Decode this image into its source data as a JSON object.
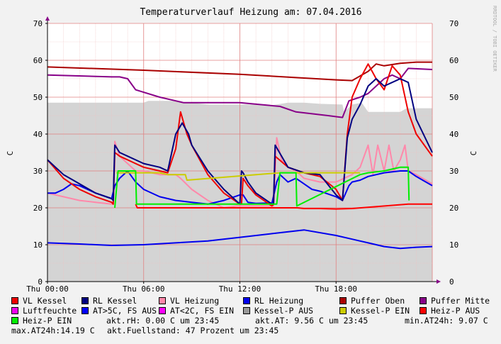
{
  "title": "Temperaturverlauf Heizung am: 07.04.2016",
  "side_credit": "RRDTOOL / TOBI OETIKER",
  "ylabel_left": "C",
  "ylabel_right": "C",
  "legend": [
    {
      "label": "VL Kessel",
      "color": "#ee0000"
    },
    {
      "label": "RL Kessel",
      "color": "#000080"
    },
    {
      "label": "VL Heizung",
      "color": "#ff88aa"
    },
    {
      "label": "RL Heizung",
      "color": "#0000ee"
    },
    {
      "label": "Puffer Oben",
      "color": "#aa0000"
    },
    {
      "label": "Puffer Mitte",
      "color": "#880088"
    },
    {
      "label": "Luftfeuchte",
      "color": "#ee00ee"
    },
    {
      "label": "AT>5C, FS AUS",
      "color": "#0000ff"
    },
    {
      "label": "AT<2C, FS EIN",
      "color": "#ff00ff"
    },
    {
      "label": "Kessel-P AUS",
      "color": "#999999"
    },
    {
      "label": "Kessel-P EIN",
      "color": "#cccc00"
    },
    {
      "label": "Heiz-P AUS",
      "color": "#ff0000"
    },
    {
      "label": "Heiz-P EIN",
      "color": "#00ee00"
    }
  ],
  "status": {
    "rh": "akt.rH: 0.00 C um 23:45",
    "at": "akt.AT: 9.56 C um 23:45",
    "min_at": "min.AT24h: 9.07 C",
    "max_at": "max.AT24h:14.19 C",
    "fuellstand": "akt.Fuellstand:   47 Prozent um 23:45"
  },
  "chart_data": {
    "type": "line",
    "title": "Temperaturverlauf Heizung am: 07.04.2016",
    "xlabel": "",
    "ylabel": "C",
    "x_unit": "hours since 00:00",
    "xlim": [
      0,
      24
    ],
    "ylim": [
      0,
      70
    ],
    "x_ticks": [
      {
        "x": 0,
        "label": "Thu 00:00"
      },
      {
        "x": 6,
        "label": "Thu 06:00"
      },
      {
        "x": 12,
        "label": "Thu 12:00"
      },
      {
        "x": 18,
        "label": "Thu 18:00"
      }
    ],
    "y_ticks": [
      0,
      10,
      20,
      30,
      40,
      50,
      60,
      70
    ],
    "grid": true,
    "series": [
      {
        "name": "Kessel-P AUS",
        "style": "area",
        "color": "#d4d4d4",
        "x": [
          0,
          4,
          5.5,
          6,
          6.3,
          7,
          7.4,
          8.1,
          8.3,
          9,
          10,
          11,
          12.5,
          13,
          14,
          15,
          16,
          17,
          18.4,
          18.5,
          19,
          19.6,
          20,
          21,
          22,
          22.4,
          22.5,
          23,
          24
        ],
        "y": [
          48.5,
          48.5,
          48.5,
          48.5,
          49,
          49,
          49,
          49,
          48.5,
          48.5,
          48,
          48,
          48,
          48,
          47.8,
          48.5,
          48.5,
          48.2,
          48,
          46,
          48,
          48.5,
          46,
          46,
          46,
          47,
          47,
          47,
          47
        ]
      },
      {
        "name": "Puffer Oben",
        "color": "#aa0000",
        "x": [
          0,
          6,
          12,
          18,
          19,
          20,
          20.5,
          21,
          22,
          23,
          24
        ],
        "y": [
          58.2,
          57.3,
          56.2,
          54.7,
          54.5,
          57,
          59,
          58.5,
          59.2,
          59.5,
          59.5
        ]
      },
      {
        "name": "Puffer Mitte",
        "color": "#880088",
        "x": [
          0,
          4,
          4.5,
          5,
          5.5,
          7,
          8,
          8.5,
          10,
          12,
          14.5,
          15.5,
          17.5,
          18.4,
          18.8,
          19.5,
          20,
          21,
          21.5,
          22,
          22.5,
          24
        ],
        "y": [
          56,
          55.5,
          55.5,
          55,
          52,
          50,
          49,
          48.5,
          48.5,
          48.5,
          47.5,
          46,
          45,
          44.5,
          49,
          50,
          51,
          55,
          56,
          55,
          57.8,
          57.5
        ]
      },
      {
        "name": "AT>5C, FS AUS",
        "color": "#0000ee",
        "x": [
          0,
          2,
          4,
          6,
          8,
          10,
          12,
          14,
          16,
          18,
          19,
          20,
          21,
          22,
          23,
          24
        ],
        "y": [
          10.5,
          10.2,
          9.8,
          10,
          10.5,
          11,
          12,
          13,
          14,
          12.5,
          11.5,
          10.5,
          9.5,
          9,
          9.3,
          9.5
        ]
      },
      {
        "name": "VL Heizung",
        "color": "#ff88aa",
        "x": [
          0,
          1,
          2,
          3,
          4,
          4.1,
          4.2,
          4.5,
          5,
          5.5,
          6,
          7,
          8,
          8.3,
          9,
          10,
          11,
          11.8,
          12,
          13,
          14,
          14.1,
          14.3,
          14.6,
          15,
          15.5,
          16,
          17,
          18,
          18.5,
          19,
          19.5,
          20,
          20.3,
          20.6,
          21,
          21.3,
          21.6,
          22,
          22.3,
          22.5,
          23,
          24
        ],
        "y": [
          24,
          23,
          22,
          21.5,
          21,
          21,
          38,
          34,
          32,
          30,
          30,
          29,
          29,
          28,
          25,
          22,
          20,
          20.5,
          20.5,
          20.5,
          20.5,
          20.5,
          39,
          33,
          31,
          30,
          28,
          27,
          27,
          28,
          29,
          31,
          37,
          29,
          37,
          30,
          37,
          30,
          33,
          37,
          30,
          29,
          26.5
        ]
      },
      {
        "name": "RL Heizung",
        "color": "#0000ee",
        "x": [
          0,
          0.5,
          1,
          1.5,
          2,
          3,
          4,
          4.2,
          4.5,
          5,
          5.5,
          6,
          7,
          8,
          9,
          10,
          11,
          12,
          12.2,
          12.5,
          13,
          14,
          14.3,
          14.5,
          15,
          15.5,
          16,
          16.5,
          17,
          18,
          18.4,
          18.8,
          19,
          19.5,
          20,
          21,
          22,
          22.5,
          23,
          24
        ],
        "y": [
          24,
          24,
          25,
          26.5,
          26,
          24,
          22.5,
          26,
          28,
          30,
          27,
          25,
          23,
          22,
          21.5,
          21,
          22,
          23.5,
          23.5,
          21.5,
          21.2,
          21.3,
          27,
          29,
          27,
          28,
          26.5,
          25,
          24.5,
          23,
          22,
          26,
          27,
          27.5,
          28.5,
          29.5,
          30,
          30,
          28.5,
          26
        ]
      },
      {
        "name": "VL Kessel",
        "color": "#ee0000",
        "x": [
          0,
          1,
          2,
          3,
          4,
          4.1,
          4.2,
          4.5,
          5,
          5.5,
          6,
          7,
          7.5,
          8,
          8.3,
          8.7,
          9,
          10,
          11,
          12,
          12.1,
          12.2,
          12.5,
          13,
          14,
          14.1,
          14.2,
          15,
          16,
          17,
          18,
          18.4,
          18.7,
          19,
          19.5,
          20,
          20.5,
          21,
          21.5,
          22,
          22.5,
          23,
          24
        ],
        "y": [
          33,
          28,
          25,
          23,
          21.5,
          21,
          35,
          34,
          33,
          32,
          31,
          30,
          29.5,
          36,
          46,
          40,
          37,
          29,
          24,
          21,
          21,
          28,
          26,
          23.5,
          20.5,
          21,
          34,
          31,
          29.5,
          28.5,
          25,
          22,
          40,
          50,
          55,
          59,
          55,
          52,
          58.5,
          56,
          46,
          40,
          34
        ]
      },
      {
        "name": "RL Kessel",
        "color": "#000080",
        "x": [
          0,
          1,
          2,
          3,
          4,
          4.1,
          4.2,
          4.5,
          5,
          5.5,
          6,
          7,
          7.5,
          8,
          8.4,
          8.8,
          9,
          10,
          11,
          12,
          12.1,
          12.2,
          12.5,
          13,
          14,
          14.1,
          14.2,
          15,
          16,
          17,
          18,
          18.4,
          18.7,
          19,
          19.5,
          20,
          20.5,
          21,
          21.5,
          22,
          22.5,
          23,
          24
        ],
        "y": [
          33,
          29,
          26.5,
          24,
          22.5,
          22,
          37,
          35,
          34,
          33,
          32,
          31,
          30,
          40,
          43,
          40,
          37,
          30,
          25,
          21,
          30,
          29.5,
          27,
          24,
          21,
          21,
          37,
          31,
          29.5,
          29,
          23.5,
          22,
          39,
          44,
          48,
          53,
          55,
          53,
          54,
          55,
          54,
          44,
          35
        ]
      },
      {
        "name": "Kessel-P EIN",
        "color": "#cccc00",
        "x": [
          4.3,
          5,
          6,
          7,
          7.5,
          8.6,
          8.7,
          14.5,
          15,
          16,
          17,
          18,
          18.5,
          19.5
        ],
        "y": [
          29.5,
          29.5,
          29.5,
          29.5,
          29,
          29,
          27.5,
          29.5,
          29.5,
          29.5,
          29.5,
          29.5,
          29.5,
          29.5
        ]
      },
      {
        "name": "Heiz-P AUS",
        "color": "#ff0000",
        "x": [
          5.5,
          5.6,
          6,
          7,
          8,
          9,
          10,
          11,
          12,
          15.6,
          16,
          17,
          18,
          19,
          22.5,
          23,
          24
        ],
        "y": [
          21,
          20,
          20,
          20,
          20,
          20,
          20,
          20,
          20,
          20,
          19.8,
          19.8,
          19.7,
          19.8,
          21,
          21,
          21
        ]
      },
      {
        "name": "Heiz-P EIN",
        "color": "#00ee00",
        "x": [
          4.2,
          4.4,
          5,
          5.5,
          5.55,
          14.3,
          14.5,
          15,
          15.5,
          15.55,
          19.5,
          20,
          21,
          21.5,
          22,
          22.5,
          22.55
        ],
        "y": [
          20,
          30,
          30,
          30,
          21,
          21,
          29.5,
          29.5,
          29.5,
          20.5,
          29,
          29.5,
          30,
          30.5,
          31,
          31,
          22
        ]
      }
    ]
  }
}
